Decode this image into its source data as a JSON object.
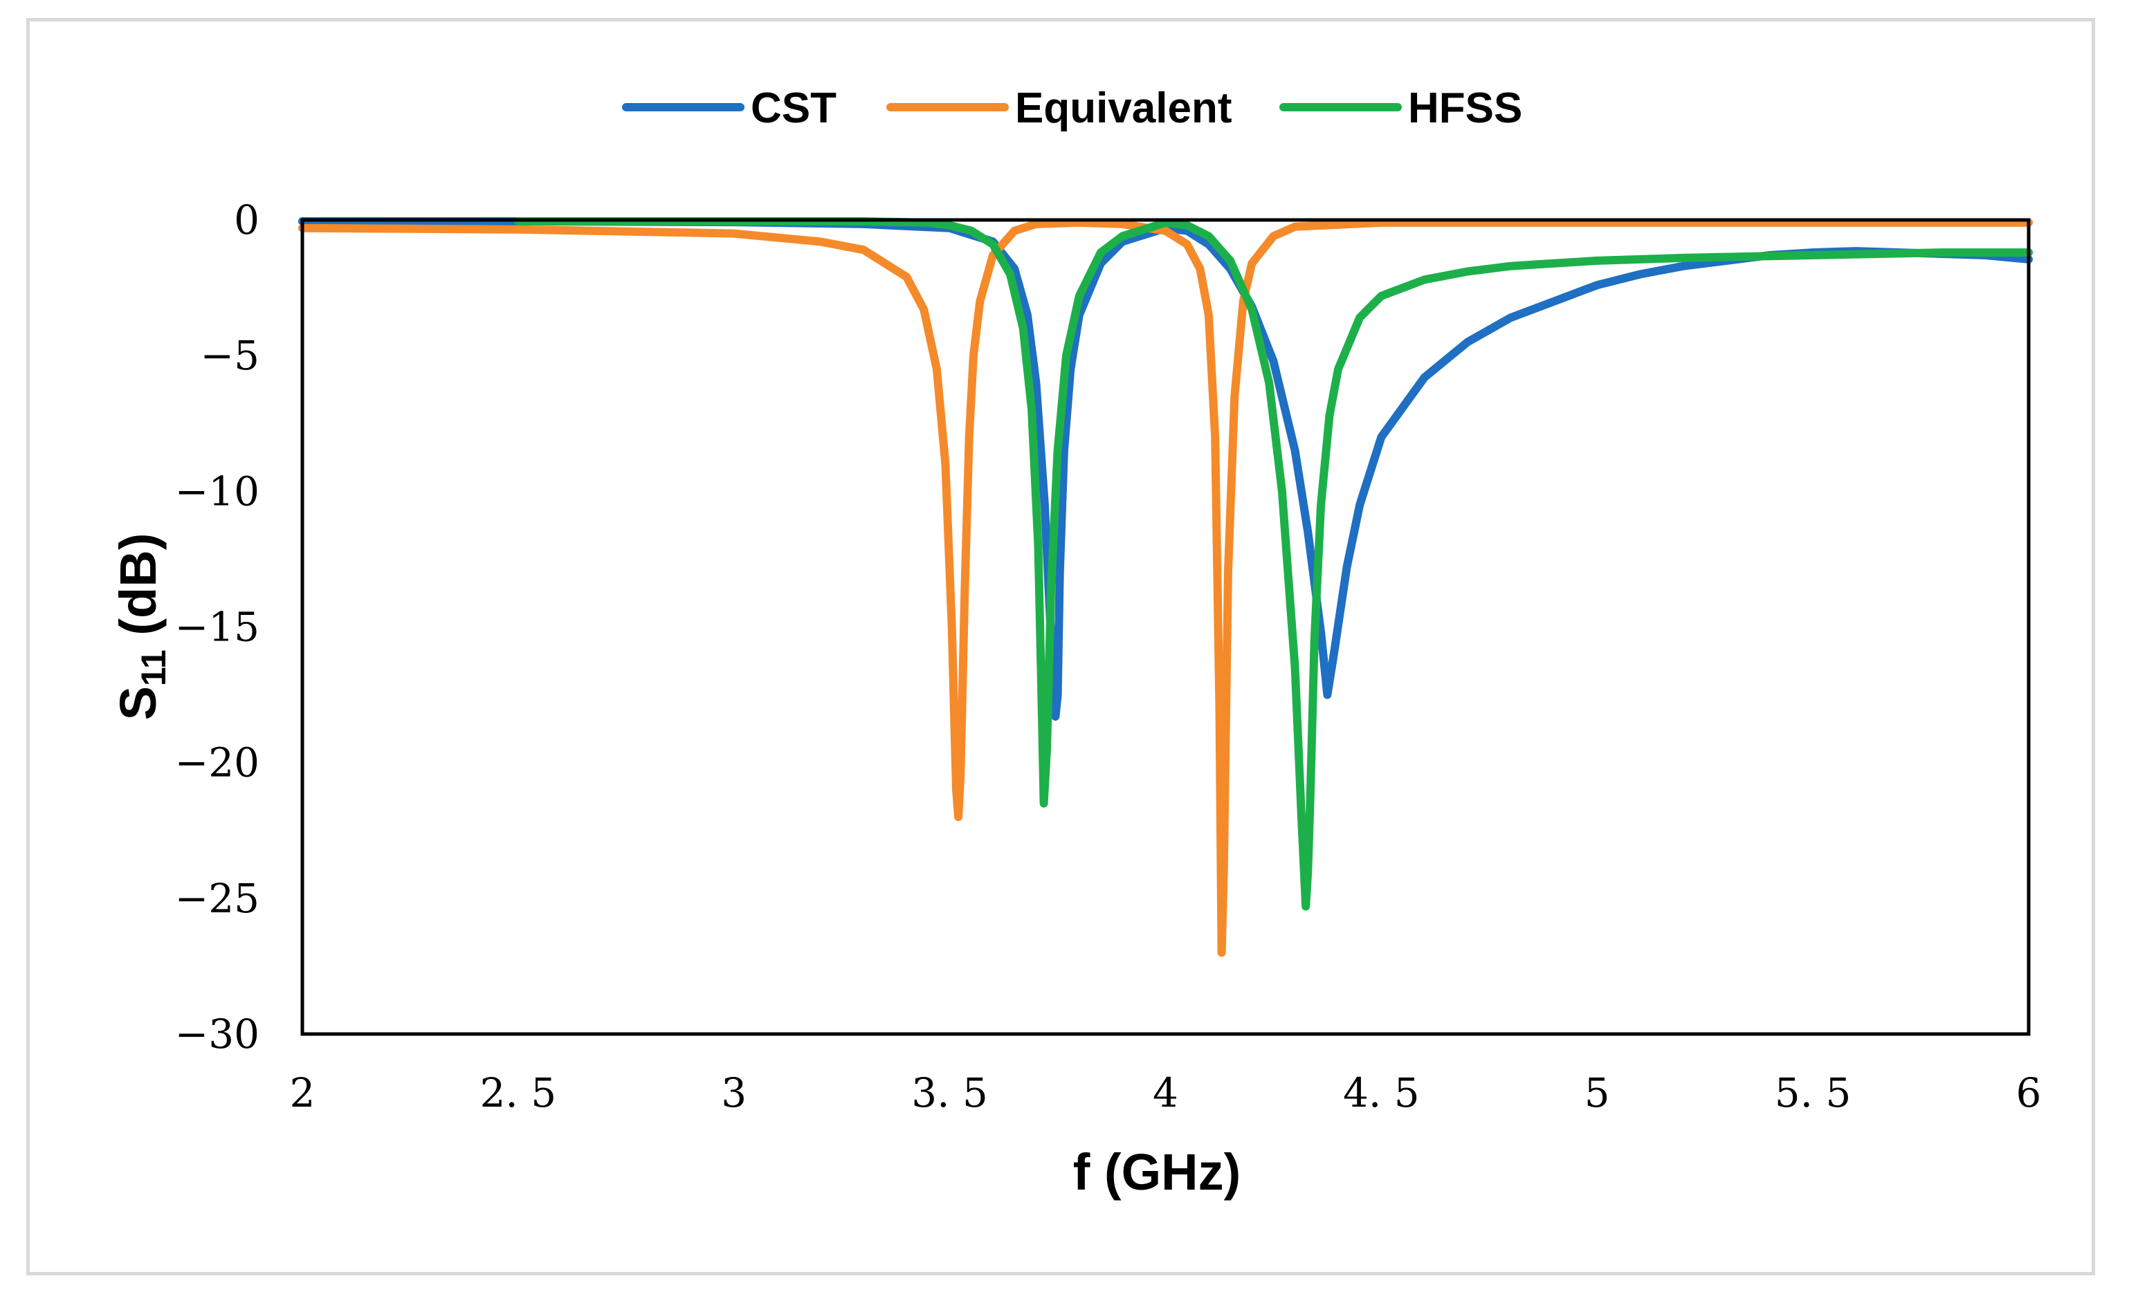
{
  "chart_data": {
    "type": "line",
    "title": "",
    "xlabel": "f (GHz)",
    "ylabel_main": "S",
    "ylabel_sub": "11",
    "ylabel_unit": " (dB)",
    "xlim": [
      2,
      6
    ],
    "ylim": [
      -30,
      0
    ],
    "xticks": [
      2,
      2.5,
      3,
      3.5,
      4,
      4.5,
      5,
      5.5,
      6
    ],
    "xtick_labels": [
      "2",
      "2. 5",
      "3",
      "3. 5",
      "4",
      "4. 5",
      "5",
      "5. 5",
      "6"
    ],
    "yticks": [
      0,
      -5,
      -10,
      -15,
      -20,
      -25,
      -30
    ],
    "ytick_labels": [
      "0",
      "−5",
      "−10",
      "−15",
      "−20",
      "−25",
      "−30"
    ],
    "grid": false,
    "legend_position": "top-center",
    "series": [
      {
        "name": "CST",
        "color": "#1f6fc2",
        "x": [
          2.0,
          2.5,
          3.0,
          3.3,
          3.5,
          3.6,
          3.65,
          3.68,
          3.7,
          3.72,
          3.735,
          3.745,
          3.75,
          3.755,
          3.765,
          3.78,
          3.8,
          3.85,
          3.9,
          4.0,
          4.05,
          4.1,
          4.15,
          4.2,
          4.25,
          4.3,
          4.33,
          4.36,
          4.375,
          4.39,
          4.42,
          4.45,
          4.5,
          4.6,
          4.7,
          4.8,
          4.9,
          5.0,
          5.1,
          5.2,
          5.3,
          5.4,
          5.5,
          5.6,
          5.7,
          5.8,
          5.9,
          6.0
        ],
        "y": [
          -0.05,
          -0.05,
          -0.08,
          -0.15,
          -0.3,
          -0.8,
          -1.8,
          -3.5,
          -6.0,
          -10.5,
          -15.5,
          -18.3,
          -17.5,
          -13.0,
          -8.5,
          -5.5,
          -3.5,
          -1.6,
          -0.8,
          -0.3,
          -0.4,
          -0.9,
          -1.8,
          -3.2,
          -5.2,
          -8.5,
          -11.5,
          -15.2,
          -17.5,
          -16.0,
          -12.8,
          -10.5,
          -8.0,
          -5.8,
          -4.5,
          -3.6,
          -3.0,
          -2.4,
          -2.0,
          -1.7,
          -1.5,
          -1.3,
          -1.2,
          -1.15,
          -1.2,
          -1.25,
          -1.3,
          -1.45
        ]
      },
      {
        "name": "Equivalent",
        "color": "#f58a2a",
        "x": [
          2.0,
          2.5,
          3.0,
          3.2,
          3.3,
          3.4,
          3.44,
          3.47,
          3.49,
          3.505,
          3.515,
          3.52,
          3.525,
          3.535,
          3.545,
          3.555,
          3.57,
          3.6,
          3.65,
          3.7,
          3.8,
          3.9,
          4.0,
          4.05,
          4.08,
          4.1,
          4.115,
          4.125,
          4.13,
          4.135,
          4.145,
          4.16,
          4.18,
          4.2,
          4.25,
          4.3,
          4.5,
          5.0,
          5.5,
          6.0
        ],
        "y": [
          -0.3,
          -0.35,
          -0.5,
          -0.8,
          -1.1,
          -2.1,
          -3.3,
          -5.5,
          -9.0,
          -15.0,
          -21.0,
          -22.0,
          -20.5,
          -13.5,
          -8.0,
          -5.0,
          -3.0,
          -1.3,
          -0.4,
          -0.15,
          -0.1,
          -0.15,
          -0.4,
          -0.9,
          -1.8,
          -3.5,
          -8.0,
          -18.0,
          -27.0,
          -24.0,
          -13.0,
          -6.5,
          -3.0,
          -1.6,
          -0.6,
          -0.25,
          -0.1,
          -0.1,
          -0.1,
          -0.1
        ]
      },
      {
        "name": "HFSS",
        "color": "#1db04a",
        "x": [
          2.5,
          3.0,
          3.3,
          3.45,
          3.5,
          3.55,
          3.6,
          3.64,
          3.67,
          3.69,
          3.705,
          3.712,
          3.718,
          3.725,
          3.735,
          3.75,
          3.77,
          3.8,
          3.85,
          3.9,
          4.0,
          4.05,
          4.1,
          4.15,
          4.2,
          4.24,
          4.27,
          4.3,
          4.315,
          4.325,
          4.33,
          4.335,
          4.345,
          4.36,
          4.38,
          4.4,
          4.45,
          4.5,
          4.6,
          4.7,
          4.8,
          4.9,
          5.0,
          5.2,
          5.5,
          5.8,
          6.0
        ],
        "y": [
          -0.05,
          -0.05,
          -0.05,
          -0.1,
          -0.2,
          -0.4,
          -0.9,
          -2.0,
          -4.0,
          -7.0,
          -12.0,
          -17.0,
          -21.5,
          -19.5,
          -13.5,
          -8.5,
          -5.0,
          -2.8,
          -1.2,
          -0.6,
          -0.1,
          -0.2,
          -0.6,
          -1.5,
          -3.3,
          -6.0,
          -10.0,
          -16.5,
          -22.0,
          -25.3,
          -24.0,
          -21.5,
          -15.5,
          -10.5,
          -7.2,
          -5.5,
          -3.6,
          -2.8,
          -2.2,
          -1.9,
          -1.7,
          -1.6,
          -1.5,
          -1.4,
          -1.3,
          -1.2,
          -1.2
        ]
      }
    ]
  }
}
